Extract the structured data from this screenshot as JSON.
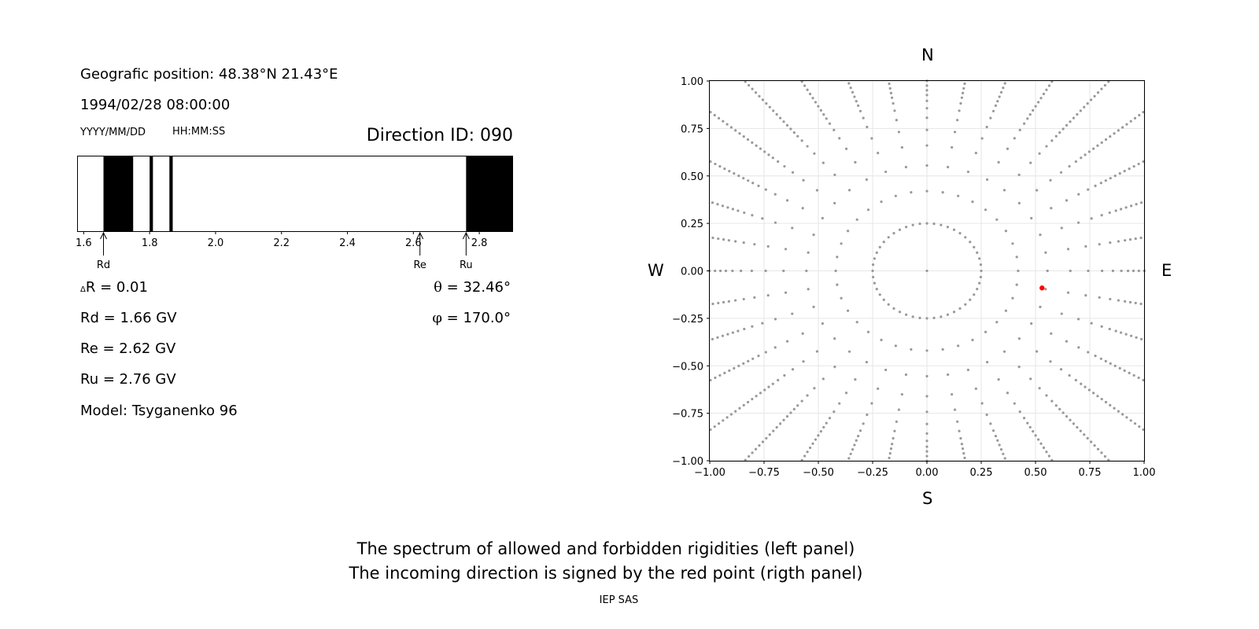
{
  "info": {
    "geo_position": "Geografic position: 48.38°N 21.43°E",
    "datetime": "1994/02/28 08:00:00",
    "date_format": "YYYY/MM/DD",
    "time_format": "HH:MM:SS",
    "direction_id": "Direction ID: 090"
  },
  "values": {
    "delta_r_symbol": "Δ",
    "delta_r": "R = 0.01",
    "rd": "Rd = 1.66 GV",
    "re": "Re = 2.62 GV",
    "ru": "Ru = 2.76 GV",
    "model": "Model: Tsyganenko 96",
    "theta_symbol": "θ",
    "theta": " = 32.46°",
    "phi_symbol": "φ",
    "phi": " = 170.0°"
  },
  "compass": {
    "n": "N",
    "s": "S",
    "w": "W",
    "e": "E"
  },
  "footer": {
    "line1": "The spectrum of allowed and forbidden rigidities (left panel)",
    "line2": "The incoming direction is signed by the red point (rigth panel)",
    "credit": "IEP SAS"
  },
  "colors": {
    "forbidden": "#000000",
    "allowed": "#ffffff",
    "grid_points": "#999999",
    "direction_point": "#ff0000"
  },
  "chart_data": [
    {
      "type": "bar",
      "description_kind": "rigidity spectrum",
      "xlim": [
        1.58,
        2.9
      ],
      "xticks": [
        1.6,
        1.8,
        2.0,
        2.2,
        2.4,
        2.6,
        2.8
      ],
      "forbidden_bands": [
        [
          1.66,
          1.75
        ],
        [
          1.8,
          1.81
        ],
        [
          1.86,
          1.87
        ],
        [
          2.76,
          2.9
        ]
      ],
      "markers": [
        {
          "label": "Rd",
          "value": 1.66
        },
        {
          "label": "Re",
          "value": 2.62
        },
        {
          "label": "Ru",
          "value": 2.76
        }
      ]
    },
    {
      "type": "scatter",
      "xlim": [
        -1.0,
        1.0
      ],
      "ylim": [
        -1.0,
        1.0
      ],
      "xticks": [
        "−1.00",
        "−0.75",
        "−0.50",
        "−0.25",
        "0.00",
        "0.25",
        "0.50",
        "0.75",
        "1.00"
      ],
      "yticks": [
        "1.00",
        "0.75",
        "0.50",
        "0.25",
        "0.00",
        "−0.25",
        "−0.50",
        "−0.75",
        "−1.00"
      ],
      "grid": true,
      "series": [
        {
          "kind": "direction_grid",
          "center": [
            0,
            0
          ],
          "inner_ring_radius": 0.25,
          "radial_spokes_deg_step": 10
        },
        {
          "kind": "incoming_direction",
          "points": [
            [
              0.53,
              -0.09
            ]
          ]
        }
      ]
    }
  ]
}
